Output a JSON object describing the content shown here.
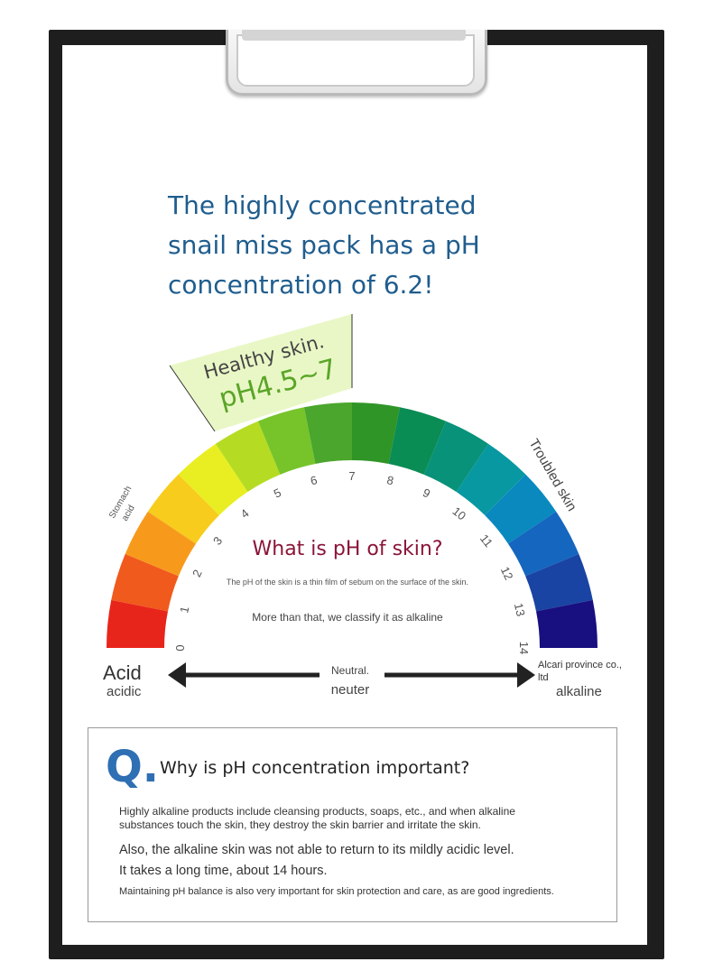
{
  "headline": {
    "line1": "The highly concentrated",
    "line2": "snail miss pack has a pH",
    "line3": "concentration of 6.2!"
  },
  "scale": {
    "healthy_label": "Healthy skin.",
    "healthy_range": "pH4.5~7",
    "stomach_label_line1": "Stomach",
    "stomach_label_line2": "acid",
    "troubled_label": "Troubled skin",
    "numbers": [
      "0",
      "1",
      "2",
      "3",
      "4",
      "5",
      "6",
      "7",
      "8",
      "9",
      "10",
      "11",
      "12",
      "13",
      "14"
    ],
    "colors": [
      "#e8251b",
      "#f05a1c",
      "#f79a1c",
      "#f7cc1c",
      "#e9ee22",
      "#b5dc23",
      "#76c42a",
      "#4aa62c",
      "#2f9527",
      "#0a8c55",
      "#089279",
      "#0898a1",
      "#0a89bf",
      "#1566bf",
      "#1a44a3",
      "#180f80"
    ],
    "healthy_band_color": "#e9f7c6"
  },
  "what": {
    "title": "What is pH of skin?",
    "sub1": "The pH of the skin is a thin film of sebum on the surface of the skin.",
    "sub2": "More than that, we classify it as alkaline"
  },
  "axis": {
    "acid_en": "Acid",
    "acid_ko": "acidic",
    "neutral_en": "Neutral.",
    "neutral_ko": "neuter",
    "alkaline_en": "Alcari province co., ltd",
    "alkaline_ko": "alkaline"
  },
  "question": {
    "letter": "Q.",
    "title": "Why is pH concentration important?",
    "p1": "Highly alkaline products include cleansing products, soaps, etc., and when alkaline substances touch the skin, they destroy the skin barrier and irritate the skin.",
    "p2": "Also, the alkaline skin was not able to return to its mildly acidic level.",
    "p3": "It takes a long time, about 14 hours.",
    "p4": "Maintaining pH balance is also very important for skin protection and care, as are good ingredients."
  }
}
